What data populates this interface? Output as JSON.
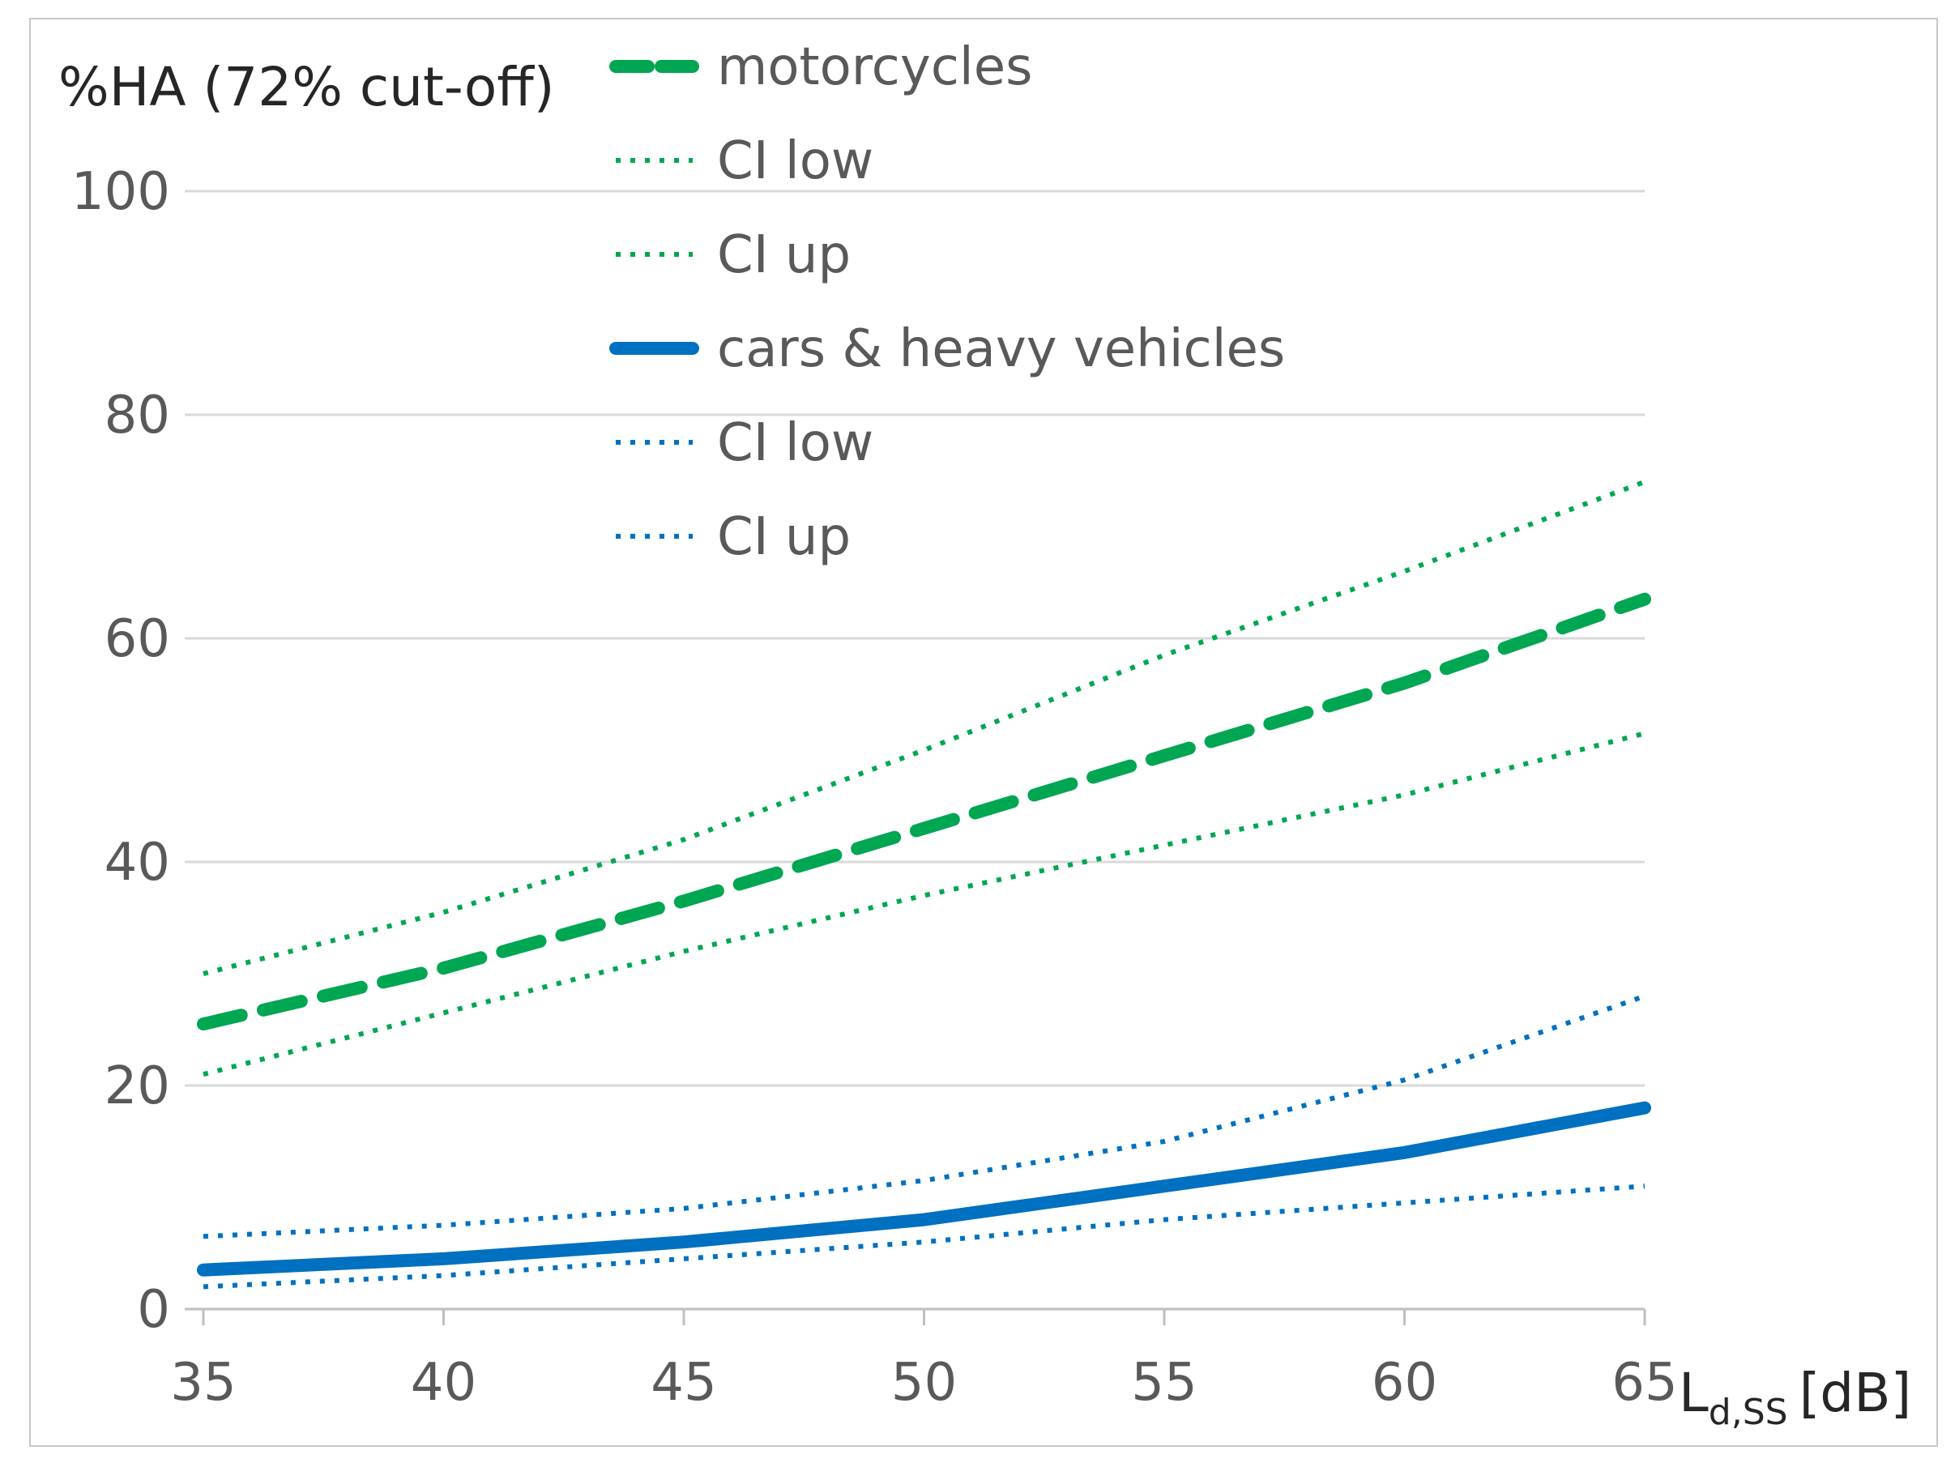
{
  "chart_data": {
    "type": "line",
    "ylabel": "%HA (72% cut-off)",
    "xlabel": {
      "main": "L",
      "sub": "d,SS",
      "unit": "[dB]"
    },
    "xlim": [
      35,
      65
    ],
    "ylim": [
      0,
      100
    ],
    "xticks": [
      "35",
      "40",
      "45",
      "50",
      "55",
      "60",
      "65"
    ],
    "yticks": [
      "0",
      "20",
      "40",
      "60",
      "80",
      "100"
    ],
    "grid": true,
    "legend_position": "top-left",
    "series": [
      {
        "name": "motorcycles",
        "color": "#00a651",
        "style": "dashed",
        "x": [
          35,
          40,
          45,
          50,
          55,
          60,
          65
        ],
        "y": [
          25.5,
          30.5,
          36.5,
          43,
          49.5,
          56,
          63.5
        ]
      },
      {
        "name": "CI low",
        "color": "#00a651",
        "style": "dotted",
        "x": [
          35,
          40,
          45,
          50,
          55,
          60,
          65
        ],
        "y": [
          21,
          26.5,
          32,
          37,
          41.5,
          46,
          51.5
        ]
      },
      {
        "name": "CI up",
        "color": "#00a651",
        "style": "dotted",
        "x": [
          35,
          40,
          45,
          50,
          55,
          60,
          65
        ],
        "y": [
          30,
          35.5,
          42,
          50,
          58.5,
          66,
          74
        ]
      },
      {
        "name": "cars & heavy vehicles",
        "color": "#0070c0",
        "style": "solid",
        "x": [
          35,
          40,
          45,
          50,
          55,
          60,
          65
        ],
        "y": [
          3.5,
          4.5,
          6,
          8,
          11,
          14,
          18
        ]
      },
      {
        "name": "CI low",
        "color": "#0070c0",
        "style": "dotted",
        "x": [
          35,
          40,
          45,
          50,
          55,
          60,
          65
        ],
        "y": [
          2,
          3,
          4.5,
          6,
          8,
          9.5,
          11
        ]
      },
      {
        "name": "CI up",
        "color": "#0070c0",
        "style": "dotted",
        "x": [
          35,
          40,
          45,
          50,
          55,
          60,
          65
        ],
        "y": [
          6.5,
          7.5,
          9,
          11.5,
          15,
          20.5,
          28
        ]
      }
    ]
  }
}
